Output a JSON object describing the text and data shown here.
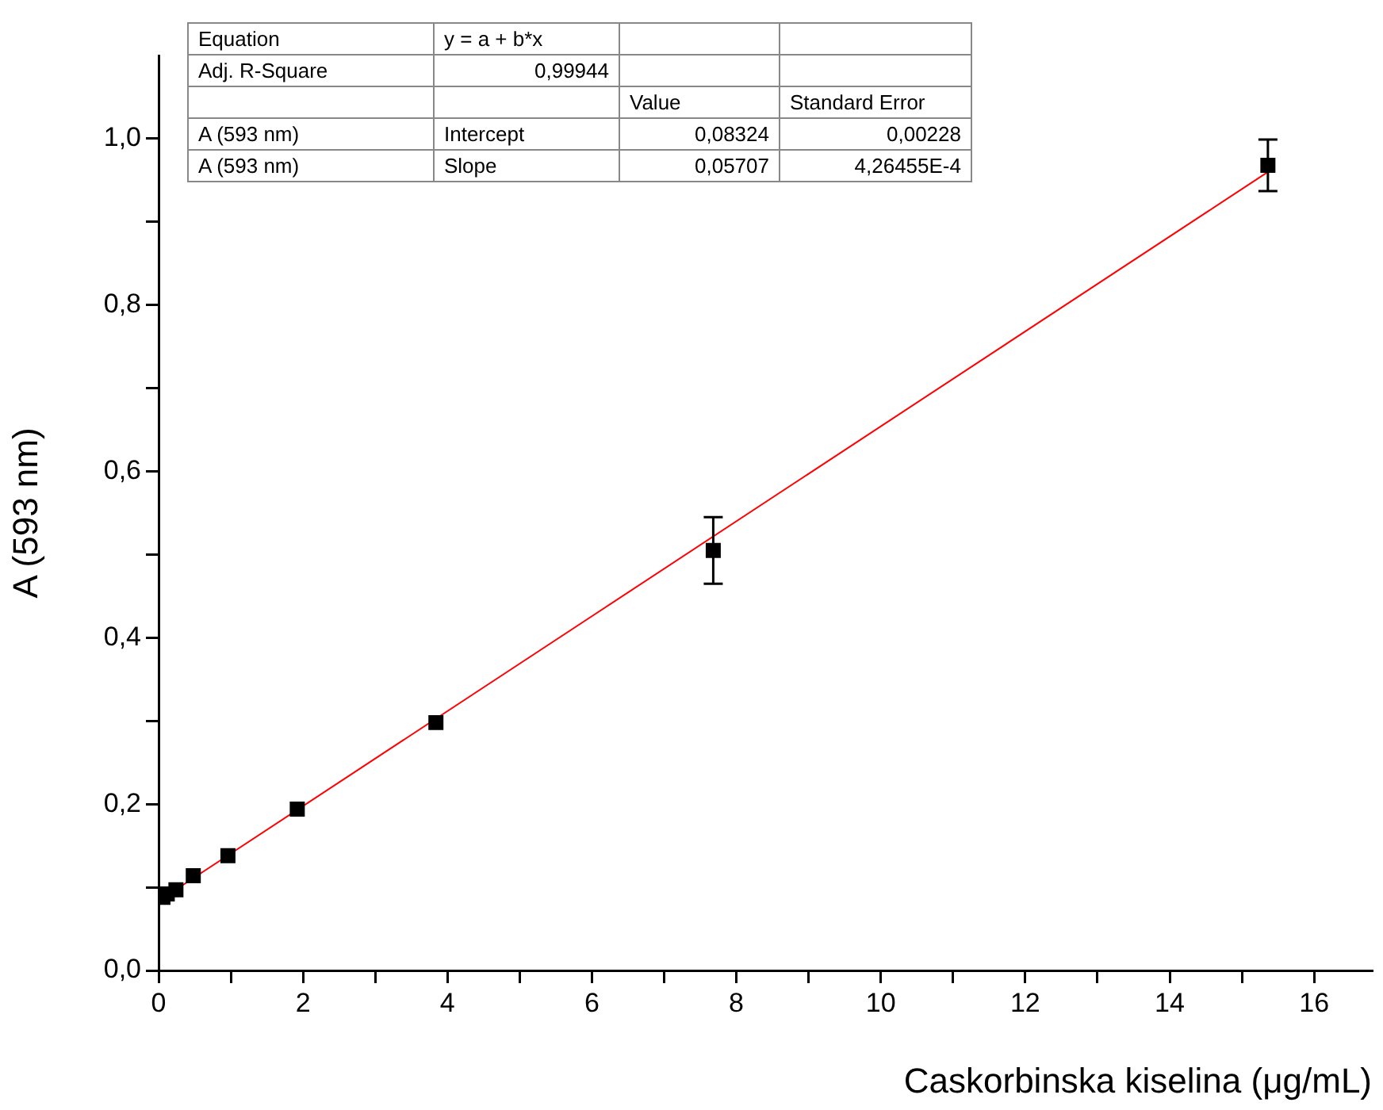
{
  "chart_data": {
    "type": "scatter",
    "xlabel": "Caskorbinska kiselina (μg/mL)",
    "ylabel": "A (593 nm)",
    "x": [
      0.06,
      0.12,
      0.24,
      0.48,
      0.96,
      1.92,
      3.84,
      7.68,
      15.36
    ],
    "series": [
      {
        "color": "#000000",
        "marker": "square",
        "values": [
          0.088,
          0.092,
          0.097,
          0.114,
          0.138,
          0.194,
          0.298,
          0.505,
          0.968
        ],
        "errors": [
          null,
          null,
          null,
          null,
          null,
          null,
          null,
          0.04,
          0.031
        ]
      },
      {
        "type": "line",
        "color": "#ff0000",
        "marker": "none",
        "x": [
          0.06,
          15.36
        ],
        "values": [
          0.087,
          0.96
        ]
      }
    ],
    "xlim": [
      0,
      16.8
    ],
    "ylim": [
      0,
      1.1
    ],
    "xticks": [
      0,
      {
        "value": 1,
        "label": null
      },
      2,
      {
        "value": 3,
        "label": null
      },
      4,
      {
        "value": 5,
        "label": null
      },
      6,
      {
        "value": 7,
        "label": null
      },
      8,
      {
        "value": 9,
        "label": null
      },
      10,
      {
        "value": 11,
        "label": null
      },
      12,
      {
        "value": 13,
        "label": null
      },
      14,
      {
        "value": 15,
        "label": null
      },
      16
    ],
    "yticks": [
      {
        "value": 0,
        "label": "0,0"
      },
      {
        "value": 0.1,
        "label": null
      },
      {
        "value": 0.2,
        "label": "0,2"
      },
      {
        "value": 0.3,
        "label": null
      },
      {
        "value": 0.4,
        "label": "0,4"
      },
      {
        "value": 0.5,
        "label": null
      },
      {
        "value": 0.6,
        "label": "0,6"
      },
      {
        "value": 0.7,
        "label": null
      },
      {
        "value": 0.8,
        "label": "0,8"
      },
      {
        "value": 0.9,
        "label": null
      },
      {
        "value": 1.0,
        "label": "1,0"
      }
    ],
    "grid": false,
    "legend": false,
    "annotations": [
      "Equation",
      "y = a + b*x",
      null,
      null,
      "Adj. R-Square",
      "0,99944",
      null,
      null,
      null,
      null,
      "Value",
      "Standard Error",
      "A (593 nm)",
      "Intercept",
      "0,08324",
      "0,00228",
      "A (593 nm)",
      "Slope",
      "0,05707",
      "4,26455E-4"
    ]
  }
}
